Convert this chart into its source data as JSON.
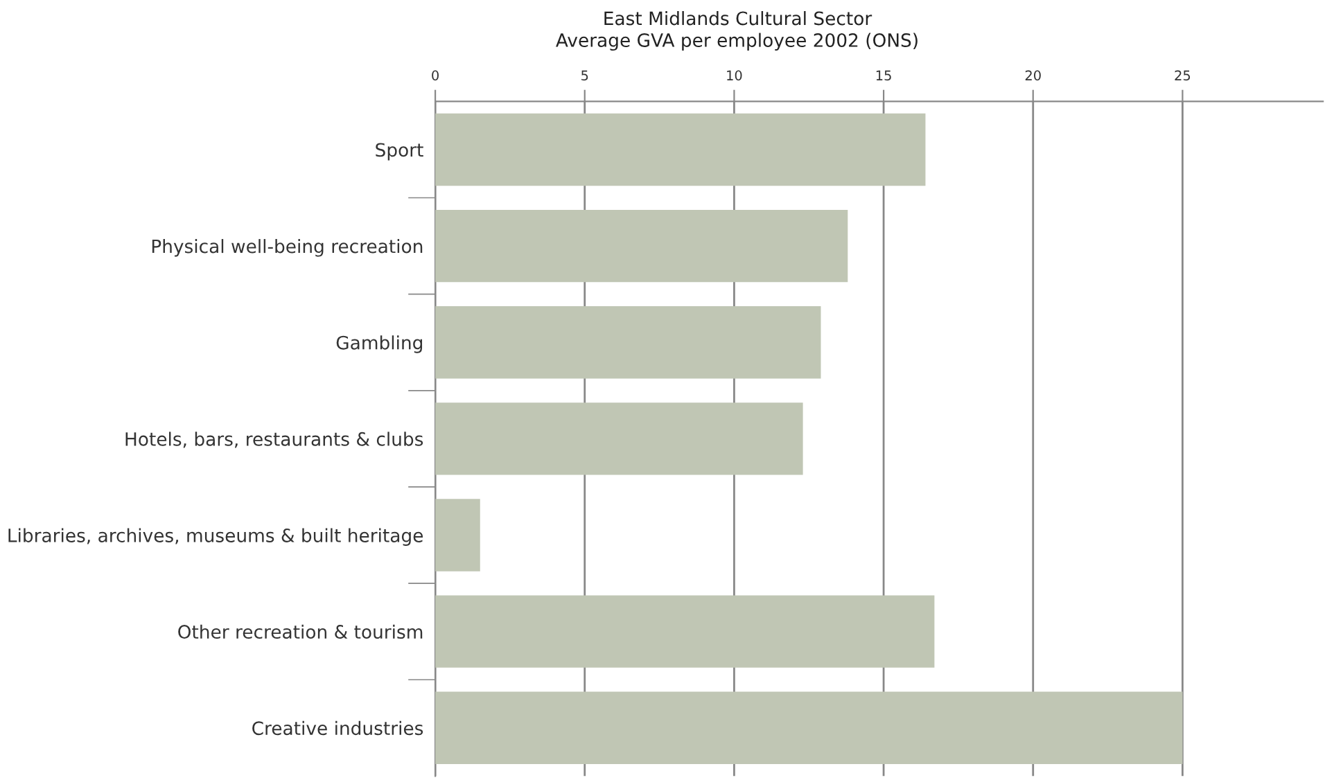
{
  "chart_data": {
    "type": "bar",
    "orientation": "horizontal",
    "title": "East Midlands Cultural Sector\nAverage GVA per employee 2002 (ONS)",
    "categories": [
      "Sport",
      "Physical well-being recreation",
      "Gambling",
      "Hotels, bars, restaurants & clubs",
      "Libraries, archives, museums & built heritage",
      "Other recreation & tourism",
      "Creative industries"
    ],
    "values": [
      16.4,
      13.8,
      12.9,
      12.3,
      1.5,
      16.7,
      25.0
    ],
    "color": "#c0c6b4",
    "xlim": [
      0,
      29.7
    ],
    "xticks": [
      0,
      5,
      10,
      15,
      20,
      25
    ],
    "grid": "x"
  }
}
